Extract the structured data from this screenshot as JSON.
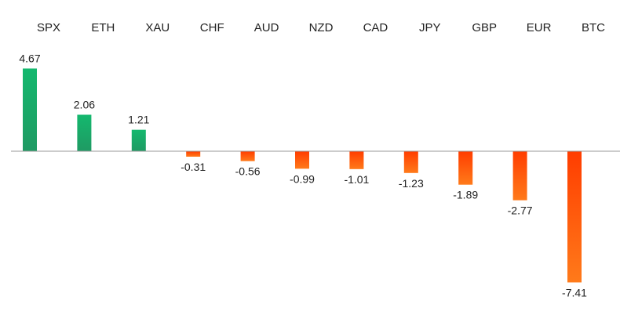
{
  "chart_data": {
    "type": "bar",
    "categories": [
      "SPX",
      "ETH",
      "XAU",
      "CHF",
      "AUD",
      "NZD",
      "CAD",
      "JPY",
      "GBP",
      "EUR",
      "BTC"
    ],
    "values": [
      4.67,
      2.06,
      1.21,
      -0.31,
      -0.56,
      -0.99,
      -1.01,
      -1.23,
      -1.89,
      -2.77,
      -7.41
    ],
    "data_labels": [
      "4.67",
      "2.06",
      "1.21",
      "-0.31",
      "-0.56",
      "-0.99",
      "-1.01",
      "-1.23",
      "-1.89",
      "-2.77",
      "-7.41"
    ],
    "title": "",
    "xlabel": "",
    "ylabel": "",
    "ylim": [
      -7.41,
      4.67
    ],
    "grid": false,
    "legend": "none",
    "category_label_position": "top",
    "colors": {
      "positive_top": "#14b86e",
      "positive_bottom": "#1f9a63",
      "negative_top": "#ff3d00",
      "negative_bottom": "#ff7a1a",
      "axis": "#9a9a9a",
      "text": "#222222"
    }
  }
}
